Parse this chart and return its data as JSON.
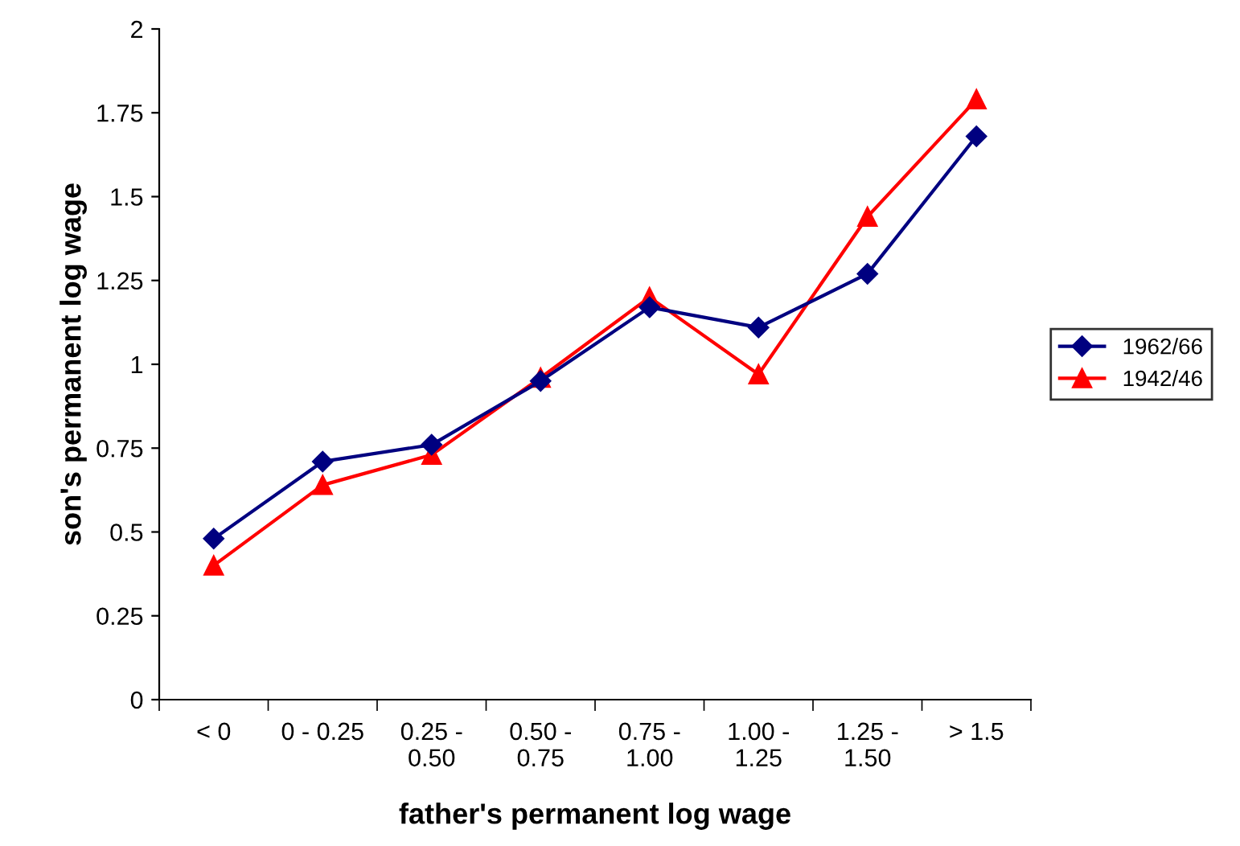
{
  "chart_data": {
    "type": "line",
    "xlabel": "father's permanent log wage",
    "ylabel": "son's permanent log wage",
    "categories": [
      "< 0",
      "0 - 0.25",
      "0.25 -\n0.50",
      "0.50 -\n0.75",
      "0.75 -\n1.00",
      "1.00 -\n1.25",
      "1.25 -\n1.50",
      "> 1.5"
    ],
    "series": [
      {
        "name": "1962/66",
        "color": "#000080",
        "marker": "diamond",
        "values": [
          0.48,
          0.71,
          0.76,
          0.95,
          1.17,
          1.11,
          1.27,
          1.68
        ]
      },
      {
        "name": "1942/46",
        "color": "#ff0000",
        "marker": "triangle",
        "values": [
          0.4,
          0.64,
          0.73,
          0.96,
          1.2,
          0.97,
          1.44,
          1.79
        ]
      }
    ],
    "ylim": [
      0,
      2
    ],
    "yticks": [
      0,
      0.25,
      0.5,
      0.75,
      1,
      1.25,
      1.5,
      1.75,
      2
    ],
    "grid": false,
    "legend": "right",
    "line_style": "solid"
  }
}
